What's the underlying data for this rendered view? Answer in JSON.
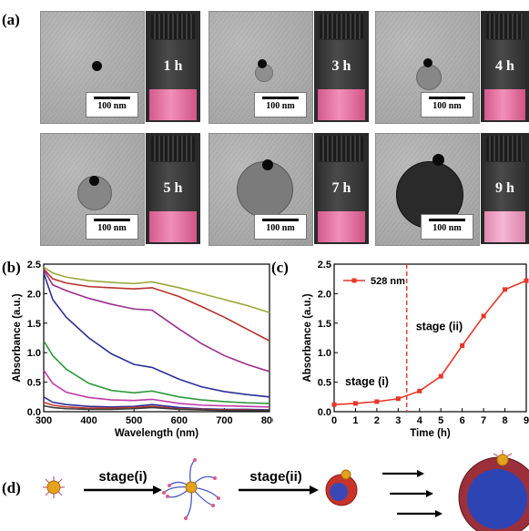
{
  "panel_a": {
    "label": "(a)",
    "scale_bar": "100 nm",
    "vials": [
      "1 h",
      "3 h",
      "4 h",
      "5 h",
      "7 h",
      "9 h"
    ]
  },
  "panel_b": {
    "label": "(b)",
    "chart_data": {
      "type": "line",
      "xlabel": "Wavelength (nm)",
      "ylabel": "Absorbance (a.u.)",
      "xlim": [
        300,
        800
      ],
      "ylim": [
        0,
        2.5
      ],
      "xticks": [
        "300",
        "400",
        "500",
        "600",
        "700",
        "800"
      ],
      "yticks": [
        "0.0",
        "0.5",
        "1.0",
        "1.5",
        "2.0",
        "2.5"
      ],
      "series": [
        {
          "color": "#9aa83a",
          "x": [
            300,
            320,
            350,
            400,
            450,
            500,
            540,
            600,
            650,
            700,
            750,
            800
          ],
          "y": [
            2.45,
            2.35,
            2.28,
            2.22,
            2.19,
            2.17,
            2.2,
            2.1,
            2.0,
            1.9,
            1.8,
            1.68
          ]
        },
        {
          "color": "#b8312a",
          "x": [
            300,
            320,
            350,
            400,
            450,
            500,
            540,
            600,
            650,
            700,
            750,
            800
          ],
          "y": [
            2.42,
            2.25,
            2.18,
            2.12,
            2.1,
            2.08,
            2.1,
            1.95,
            1.78,
            1.6,
            1.4,
            1.2
          ]
        },
        {
          "color": "#9a2f8c",
          "x": [
            300,
            320,
            350,
            400,
            450,
            500,
            540,
            600,
            650,
            700,
            750,
            800
          ],
          "y": [
            2.4,
            2.15,
            2.05,
            1.92,
            1.82,
            1.74,
            1.72,
            1.4,
            1.15,
            0.95,
            0.8,
            0.68
          ]
        },
        {
          "color": "#2b2f95",
          "x": [
            300,
            320,
            350,
            400,
            450,
            500,
            540,
            600,
            650,
            700,
            750,
            800
          ],
          "y": [
            2.35,
            1.9,
            1.6,
            1.25,
            0.98,
            0.8,
            0.75,
            0.55,
            0.42,
            0.34,
            0.29,
            0.25
          ]
        },
        {
          "color": "#2d9a3a",
          "x": [
            300,
            320,
            350,
            400,
            450,
            500,
            540,
            600,
            650,
            700,
            750,
            800
          ],
          "y": [
            1.2,
            0.95,
            0.72,
            0.48,
            0.36,
            0.32,
            0.35,
            0.25,
            0.2,
            0.17,
            0.15,
            0.14
          ]
        },
        {
          "color": "#c03aa8",
          "x": [
            300,
            320,
            350,
            400,
            450,
            500,
            540,
            600,
            650,
            700,
            750,
            800
          ],
          "y": [
            0.7,
            0.48,
            0.33,
            0.24,
            0.2,
            0.19,
            0.21,
            0.14,
            0.11,
            0.1,
            0.09,
            0.08
          ]
        },
        {
          "color": "#2d2d9a",
          "x": [
            300,
            320,
            350,
            400,
            450,
            500,
            540,
            600,
            650,
            700,
            750,
            800
          ],
          "y": [
            0.25,
            0.16,
            0.12,
            0.09,
            0.08,
            0.09,
            0.12,
            0.07,
            0.05,
            0.04,
            0.04,
            0.03
          ]
        },
        {
          "color": "#c0392b",
          "x": [
            300,
            320,
            350,
            400,
            450,
            500,
            540,
            600,
            650,
            700,
            750,
            800
          ],
          "y": [
            0.16,
            0.11,
            0.08,
            0.06,
            0.06,
            0.07,
            0.09,
            0.05,
            0.04,
            0.03,
            0.03,
            0.02
          ]
        },
        {
          "color": "#3a3a3a",
          "x": [
            300,
            320,
            350,
            400,
            450,
            500,
            540,
            600,
            650,
            700,
            750,
            800
          ],
          "y": [
            0.1,
            0.07,
            0.05,
            0.04,
            0.04,
            0.05,
            0.07,
            0.04,
            0.03,
            0.02,
            0.02,
            0.02
          ]
        }
      ]
    }
  },
  "panel_c": {
    "label": "(c)",
    "chart_data": {
      "type": "line",
      "xlabel": "Time (h)",
      "ylabel": "Absorbance (a.u.)",
      "xlim": [
        0,
        9
      ],
      "ylim": [
        0,
        2.5
      ],
      "xticks": [
        "0",
        "1",
        "2",
        "3",
        "4",
        "5",
        "6",
        "7",
        "8",
        "9"
      ],
      "yticks": [
        "0.0",
        "0.5",
        "1.0",
        "1.5",
        "2.0",
        "2.5"
      ],
      "series": [
        {
          "name": "528 nm",
          "color": "#e8372a",
          "x": [
            0,
            1,
            2,
            3,
            4,
            5,
            6,
            7,
            8,
            9
          ],
          "y": [
            0.12,
            0.14,
            0.17,
            0.22,
            0.35,
            0.6,
            1.12,
            1.62,
            2.07,
            2.22
          ]
        }
      ],
      "divider_x": 3.4,
      "annotations": [
        "stage (i)",
        "stage (ii)"
      ]
    }
  },
  "panel_d": {
    "label": "(d)",
    "arrow1_label": "stage(i)",
    "arrow2_label": "stage(ii)"
  },
  "colors": {
    "accent_red": "#e8372a",
    "liquid_pink": "#f28fb8"
  }
}
